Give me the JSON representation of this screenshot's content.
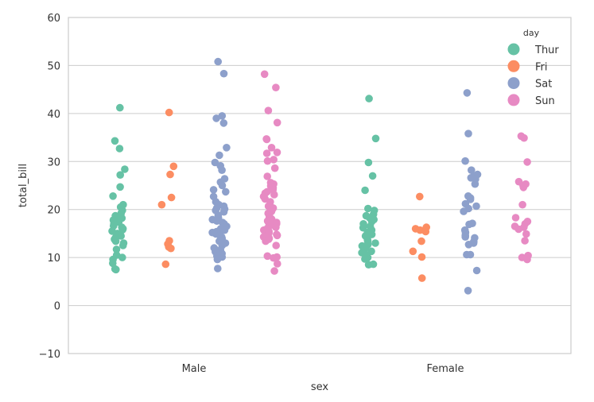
{
  "chart_data": {
    "type": "scatter",
    "title": "",
    "xlabel": "sex",
    "ylabel": "total_bill",
    "ylim": [
      -10,
      60
    ],
    "yticks": [
      -10,
      0,
      10,
      20,
      30,
      40,
      50,
      60
    ],
    "categories": [
      "Male",
      "Female"
    ],
    "grid": true,
    "legend": {
      "title": "day",
      "placement": "top-right"
    },
    "colors": {
      "Thur": "#66c2a5",
      "Fri": "#fc8d62",
      "Sat": "#8da0cb",
      "Sun": "#e78ac3"
    },
    "series": [
      {
        "name": "Thur",
        "values": {
          "Male": [
            41.2,
            34.3,
            32.7,
            28.4,
            27.2,
            24.7,
            22.8,
            21.0,
            20.5,
            19.8,
            19.2,
            18.7,
            18.2,
            17.8,
            17.4,
            17.0,
            16.6,
            16.3,
            16.0,
            15.8,
            15.5,
            15.0,
            14.5,
            14.2,
            13.8,
            13.4,
            13.0,
            12.5,
            11.7,
            10.5,
            10.0,
            9.6,
            8.8,
            7.6,
            7.5
          ],
          "Female": [
            43.1,
            34.8,
            29.8,
            27.0,
            24.0,
            20.2,
            19.8,
            19.0,
            18.7,
            18.3,
            17.9,
            17.5,
            17.0,
            16.5,
            16.2,
            15.7,
            15.2,
            14.8,
            14.5,
            14.1,
            13.7,
            13.4,
            13.0,
            12.7,
            12.4,
            12.0,
            11.6,
            11.3,
            11.0,
            10.6,
            10.3,
            10.0,
            9.7,
            8.6,
            8.5
          ]
        }
      },
      {
        "name": "Fri",
        "values": {
          "Male": [
            40.2,
            29.0,
            27.3,
            22.5,
            21.0,
            13.5,
            12.8,
            12.2,
            11.9,
            8.6
          ],
          "Female": [
            22.7,
            16.3,
            16.0,
            15.7,
            15.4,
            13.4,
            11.3,
            10.1,
            5.7
          ]
        }
      },
      {
        "name": "Sat",
        "values": {
          "Male": [
            50.8,
            48.3,
            39.5,
            39.0,
            38.0,
            32.9,
            31.3,
            29.8,
            29.1,
            28.2,
            26.4,
            25.7,
            25.0,
            24.1,
            23.7,
            22.7,
            21.6,
            21.0,
            20.7,
            20.3,
            20.1,
            19.8,
            19.5,
            18.8,
            18.3,
            17.9,
            17.6,
            17.3,
            17.0,
            16.8,
            16.5,
            16.0,
            15.7,
            15.4,
            15.2,
            14.9,
            14.6,
            14.3,
            14.0,
            13.8,
            13.4,
            13.2,
            13.0,
            12.5,
            12.0,
            11.6,
            11.2,
            10.8,
            10.5,
            10.3,
            10.1,
            9.6,
            7.7
          ],
          "Female": [
            44.3,
            35.8,
            30.1,
            28.2,
            27.3,
            26.9,
            26.6,
            26.3,
            25.3,
            22.8,
            22.4,
            22.1,
            21.2,
            20.7,
            20.2,
            19.6,
            17.1,
            16.9,
            15.7,
            15.2,
            14.6,
            14.3,
            14.1,
            13.3,
            13.0,
            12.7,
            10.6,
            10.6,
            7.3,
            3.1
          ]
        }
      },
      {
        "name": "Sun",
        "values": {
          "Male": [
            48.2,
            45.4,
            40.6,
            38.1,
            34.7,
            34.6,
            32.9,
            31.9,
            31.7,
            30.4,
            30.1,
            28.6,
            26.9,
            25.6,
            25.3,
            24.9,
            24.5,
            24.1,
            23.7,
            23.4,
            23.1,
            22.7,
            22.2,
            21.6,
            21.0,
            20.7,
            20.3,
            20.0,
            19.6,
            19.2,
            18.6,
            18.3,
            18.0,
            17.6,
            17.3,
            17.0,
            16.8,
            16.6,
            16.3,
            16.0,
            15.7,
            15.4,
            15.1,
            14.8,
            14.6,
            14.3,
            14.0,
            13.8,
            13.4,
            12.5,
            10.3,
            10.1,
            9.9,
            8.7,
            7.2
          ],
          "Female": [
            35.3,
            34.9,
            29.9,
            25.8,
            25.3,
            25.0,
            24.6,
            21.0,
            18.3,
            17.5,
            17.0,
            16.5,
            16.3,
            15.9,
            14.9,
            13.5,
            10.4,
            10.0,
            9.6
          ]
        }
      }
    ]
  }
}
